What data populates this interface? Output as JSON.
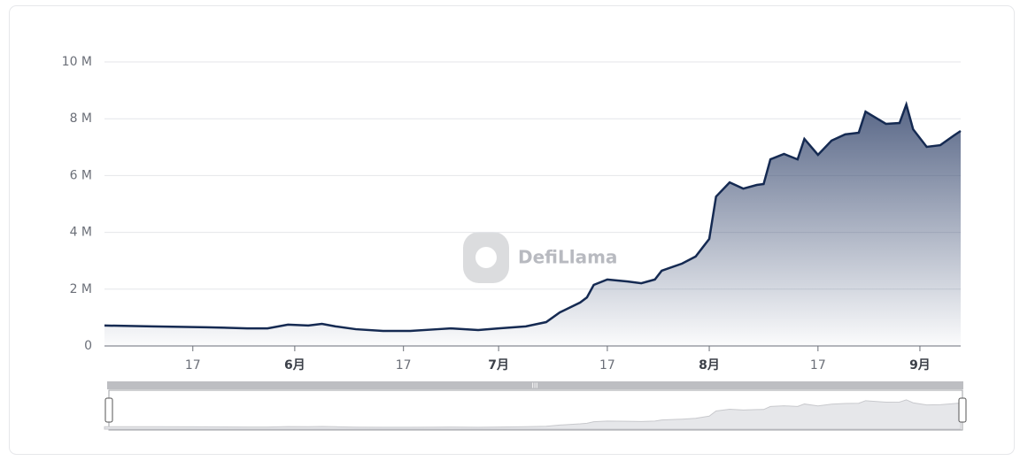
{
  "chart_data": {
    "type": "area",
    "watermark": "DefiLlama",
    "x": [
      "05-04",
      "05-11",
      "05-19",
      "05-25",
      "05-28",
      "05-31",
      "06-03",
      "06-05",
      "06-07",
      "06-10",
      "06-14",
      "06-18",
      "06-22",
      "06-24",
      "06-28",
      "07-01",
      "07-05",
      "07-08",
      "07-10",
      "07-13",
      "07-14",
      "07-15",
      "07-17",
      "07-20",
      "07-22",
      "07-24",
      "07-25",
      "07-28",
      "07-30",
      "07-31",
      "08-01",
      "08-02",
      "08-04",
      "08-06",
      "08-08",
      "08-09",
      "08-10",
      "08-12",
      "08-14",
      "08-15",
      "08-17",
      "08-19",
      "08-21",
      "08-23",
      "08-24",
      "08-27",
      "08-29",
      "08-30",
      "08-31",
      "09-02",
      "09-04",
      "09-06",
      "09-07"
    ],
    "series": [
      {
        "color": "#152a52",
        "values": [
          720000,
          690000,
          660000,
          620000,
          620000,
          750000,
          720000,
          780000,
          690000,
          590000,
          530000,
          530000,
          590000,
          620000,
          560000,
          620000,
          690000,
          840000,
          1180000,
          1530000,
          1710000,
          2150000,
          2340000,
          2270000,
          2210000,
          2340000,
          2650000,
          2900000,
          3150000,
          3460000,
          3770000,
          5260000,
          5760000,
          5540000,
          5670000,
          5700000,
          6570000,
          6760000,
          6570000,
          7290000,
          6730000,
          7230000,
          7450000,
          7510000,
          8250000,
          7820000,
          7850000,
          8500000,
          7630000,
          7010000,
          7070000,
          7410000,
          7570000
        ]
      }
    ],
    "xlim": [
      "05-04",
      "09-07"
    ],
    "xticks": [
      {
        "value": "05-17",
        "label": "17"
      },
      {
        "value": "06-01",
        "label": "6月"
      },
      {
        "value": "06-17",
        "label": "17"
      },
      {
        "value": "07-01",
        "label": "7月"
      },
      {
        "value": "07-17",
        "label": "17"
      },
      {
        "value": "08-01",
        "label": "8月"
      },
      {
        "value": "08-17",
        "label": "17"
      },
      {
        "value": "09-01",
        "label": "9月"
      }
    ],
    "ylim": [
      0,
      10000000
    ],
    "yticks": [
      0,
      {
        "value": 2000000,
        "label": "2 M"
      },
      {
        "value": 4000000,
        "label": "4 M"
      },
      {
        "value": 6000000,
        "label": "6 M"
      },
      {
        "value": 8000000,
        "label": "8 M"
      },
      {
        "value": 10000000,
        "label": "10 M"
      }
    ],
    "grid": true
  }
}
